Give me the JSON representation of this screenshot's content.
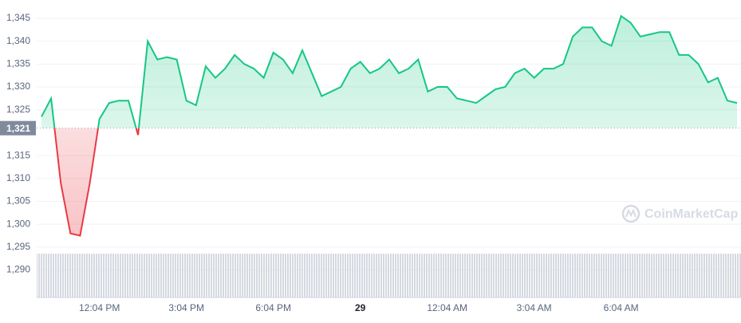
{
  "chart_data": {
    "type": "line",
    "categories": [
      null,
      null,
      null,
      null,
      null,
      null,
      "12:04 PM",
      null,
      null,
      null,
      null,
      null,
      null,
      null,
      null,
      "3:04 PM",
      null,
      null,
      null,
      null,
      null,
      null,
      null,
      null,
      "6:04 PM",
      null,
      null,
      null,
      null,
      null,
      null,
      null,
      null,
      "29",
      null,
      null,
      null,
      null,
      null,
      null,
      null,
      null,
      "12:04 AM",
      null,
      null,
      null,
      null,
      null,
      null,
      null,
      null,
      "3:04 AM",
      null,
      null,
      null,
      null,
      null,
      null,
      null,
      null,
      "6:04 AM",
      null,
      null,
      null,
      null,
      null,
      null,
      null,
      null,
      null,
      null,
      null,
      null
    ],
    "values": [
      1323.5,
      1327.5,
      1309,
      1298,
      1297.5,
      1309,
      1323,
      1326.5,
      1327,
      1327,
      1319.5,
      1340,
      1336,
      1336.5,
      1336,
      1327,
      1326,
      1334.5,
      1332,
      1334,
      1337,
      1335,
      1334,
      1332,
      1337.5,
      1336,
      1333,
      1338,
      1333,
      1328,
      1329,
      1330,
      1334,
      1335.5,
      1333,
      1334,
      1336,
      1333,
      1334,
      1336,
      1329,
      1330,
      1330,
      1327.5,
      1327,
      1326.5,
      1328,
      1329.5,
      1330,
      1333,
      1334,
      1332,
      1334,
      1334,
      1335,
      1341,
      1343,
      1343,
      1340,
      1339,
      1345.5,
      1344,
      1341,
      1341.5,
      1342,
      1342,
      1337,
      1337,
      1335,
      1331,
      1332,
      1327,
      1326.5
    ],
    "baseline": {
      "value": 1321,
      "label": "1,321"
    },
    "up_color": "#16c784",
    "down_color": "#ea3943",
    "ylim": [
      1284,
      1349
    ],
    "yticks": [
      {
        "value": 1290,
        "label": "1,290"
      },
      {
        "value": 1295,
        "label": "1,295"
      },
      {
        "value": 1300,
        "label": "1,300"
      },
      {
        "value": 1305,
        "label": "1,305"
      },
      {
        "value": 1310,
        "label": "1,310"
      },
      {
        "value": 1315,
        "label": "1,315"
      },
      {
        "value": 1325,
        "label": "1,325"
      },
      {
        "value": 1330,
        "label": "1,330"
      },
      {
        "value": 1335,
        "label": "1,335"
      },
      {
        "value": 1340,
        "label": "1,340"
      },
      {
        "value": 1345,
        "label": "1,345"
      }
    ],
    "grid": true,
    "watermark": "CoinMarketCap"
  }
}
